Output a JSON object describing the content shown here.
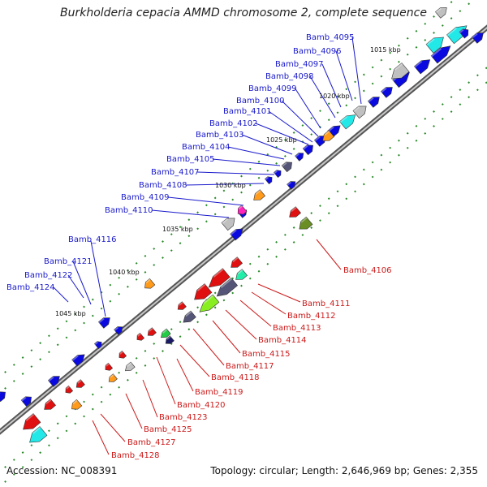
{
  "title": "Burkholderia cepacia AMMD chromosome 2, complete sequence",
  "accession": "Accession: NC_008391",
  "topology": "Topology: circular; Length: 2,646,969 bp; Genes: 2,355",
  "colors": {
    "forward_gene": "#0a0ae0",
    "reverse_gene": "#e01010",
    "backbone": "#888888",
    "tick": "#2a8a2a",
    "forward_label": "#1a1acc",
    "reverse_label": "#cc1a1a",
    "cog_orange": "#ff9a1a",
    "cog_gray": "#c0c0c0",
    "cog_cyan": "#22e8e8",
    "cog_olive": "#6a8e23",
    "cog_lime": "#88ee22",
    "cog_magenta": "#ff22bb",
    "cog_slate": "#555577",
    "cog_teal": "#22eeaa",
    "cog_navy": "#1a1a66",
    "cog_green": "#22cc44"
  },
  "kbp_markers": [
    "1015 kbp",
    "1020 kbp",
    "1025 kbp",
    "1030 kbp",
    "1035 kbp",
    "1040 kbp",
    "1045 kbp"
  ],
  "forward_labels": [
    "Bamb_4095",
    "Bamb_4096",
    "Bamb_4097",
    "Bamb_4098",
    "Bamb_4099",
    "Bamb_4100",
    "Bamb_4101",
    "Bamb_4102",
    "Bamb_4103",
    "Bamb_4104",
    "Bamb_4105",
    "Bamb_4107",
    "Bamb_4108",
    "Bamb_4109",
    "Bamb_4110",
    "Bamb_4116",
    "Bamb_4121",
    "Bamb_4122",
    "Bamb_4124"
  ],
  "reverse_labels": [
    "Bamb_4106",
    "Bamb_4111",
    "Bamb_4112",
    "Bamb_4113",
    "Bamb_4114",
    "Bamb_4115",
    "Bamb_4117",
    "Bamb_4118",
    "Bamb_4119",
    "Bamb_4120",
    "Bamb_4123",
    "Bamb_4125",
    "Bamb_4127",
    "Bamb_4128"
  ]
}
